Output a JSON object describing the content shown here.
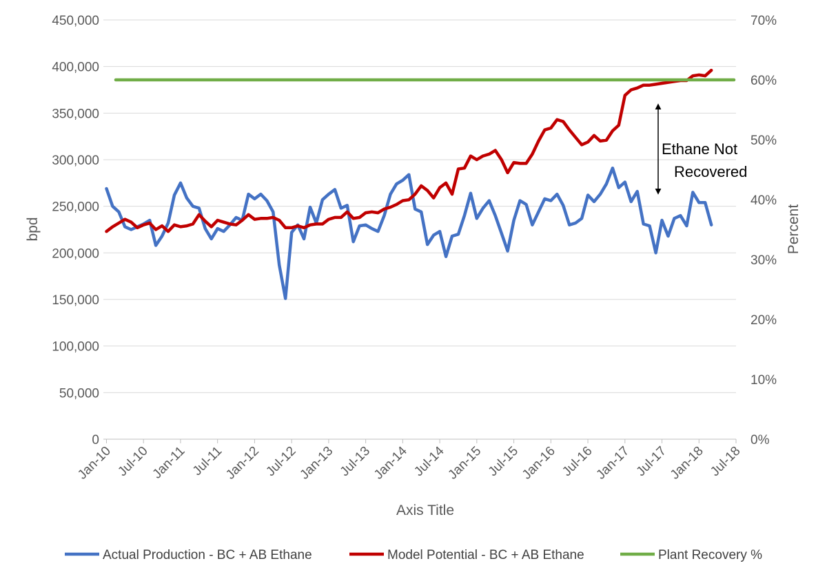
{
  "chart_data": {
    "type": "line",
    "xlabel": "Axis Title",
    "ylabel": "bpd",
    "y2label": "Percent",
    "ylim": [
      0,
      450000
    ],
    "y2lim": [
      0,
      0.7
    ],
    "grid": true,
    "legend_position": "bottom",
    "y_ticks": [
      "0",
      "50,000",
      "100,000",
      "150,000",
      "200,000",
      "250,000",
      "300,000",
      "350,000",
      "400,000",
      "450,000"
    ],
    "y2_ticks": [
      "0%",
      "10%",
      "20%",
      "30%",
      "40%",
      "50%",
      "60%",
      "70%"
    ],
    "x_ticks": [
      "Jan-10",
      "Jul-10",
      "Jan-11",
      "Jul-11",
      "Jan-12",
      "Jul-12",
      "Jan-13",
      "Jul-13",
      "Jan-14",
      "Jul-14",
      "Jan-15",
      "Jul-15",
      "Jan-16",
      "Jul-16",
      "Jan-17",
      "Jul-17",
      "Jan-18",
      "Jul-18"
    ],
    "x_start": "Jan-10",
    "series": [
      {
        "name": "Actual Production - BC + AB Ethane",
        "color": "#4472c4",
        "axis": "left",
        "values": [
          269000,
          250000,
          244000,
          228000,
          225000,
          228000,
          231000,
          235000,
          208000,
          218000,
          232000,
          262000,
          275000,
          259000,
          250000,
          248000,
          226000,
          215000,
          226000,
          223000,
          230000,
          238000,
          235000,
          263000,
          258000,
          263000,
          256000,
          244000,
          187000,
          151000,
          222000,
          230000,
          215000,
          249000,
          232000,
          257000,
          263000,
          268000,
          248000,
          251000,
          212000,
          229000,
          230000,
          226000,
          223000,
          240000,
          263000,
          274000,
          278000,
          284000,
          247000,
          244000,
          209000,
          219000,
          223000,
          196000,
          218000,
          220000,
          240000,
          264000,
          237000,
          248000,
          256000,
          240000,
          221000,
          202000,
          235000,
          256000,
          252000,
          230000,
          244000,
          258000,
          256000,
          263000,
          251000,
          230000,
          232000,
          237000,
          262000,
          255000,
          263000,
          274000,
          291000,
          270000,
          276000,
          255000,
          266000,
          231000,
          229000,
          200000,
          235000,
          218000,
          237000,
          240000,
          229000,
          265000,
          254000,
          254000,
          230000
        ]
      },
      {
        "name": "Model Potential - BC + AB Ethane",
        "color": "#c00000",
        "axis": "left",
        "values": [
          223000,
          228000,
          232000,
          236000,
          233000,
          227000,
          230000,
          232000,
          225000,
          229000,
          223000,
          230000,
          228000,
          229000,
          231000,
          241000,
          234000,
          228000,
          235000,
          233000,
          231000,
          230000,
          235000,
          241000,
          236000,
          237000,
          237000,
          238000,
          235000,
          227000,
          227000,
          229000,
          227000,
          230000,
          231000,
          231000,
          236000,
          238000,
          238000,
          244000,
          237000,
          238000,
          243000,
          244000,
          243000,
          247000,
          249000,
          252000,
          256000,
          257000,
          263000,
          272000,
          267000,
          259000,
          270000,
          275000,
          263000,
          290000,
          291000,
          304000,
          300000,
          304000,
          306000,
          310000,
          300000,
          286000,
          297000,
          296000,
          296000,
          306000,
          320000,
          332000,
          334000,
          343000,
          341000,
          332000,
          324000,
          316000,
          319000,
          326000,
          320000,
          321000,
          331000,
          337000,
          369000,
          375000,
          377000,
          380000,
          380000,
          381000,
          382000,
          383000,
          384000,
          385000,
          385000,
          390000,
          391000,
          390000,
          396000
        ]
      },
      {
        "name": "Plant Recovery %",
        "color": "#70ad47",
        "axis": "right",
        "values": [
          0.6,
          0.6
        ]
      }
    ],
    "annotation": {
      "lines": [
        "Ethane Not",
        "Recovered"
      ]
    }
  }
}
